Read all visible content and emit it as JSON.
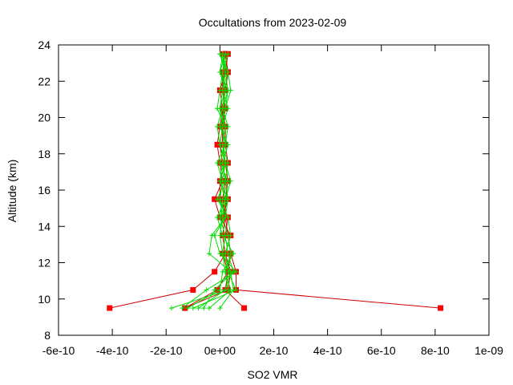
{
  "chart_data": {
    "type": "line",
    "title": "Occultations from 2023-02-09",
    "xlabel": "SO2 VMR",
    "ylabel": "Altitude (km)",
    "xlim": [
      -6e-10,
      1e-09
    ],
    "ylim": [
      8,
      24
    ],
    "x_ticks": [
      -6e-10,
      -4e-10,
      -2e-10,
      0,
      2e-10,
      4e-10,
      6e-10,
      8e-10,
      1e-09
    ],
    "x_tick_labels": [
      "-6e-10",
      "-4e-10",
      "-2e-10",
      "0e+00",
      "2e-10",
      "4e-10",
      "6e-10",
      "8e-10",
      "1e-09"
    ],
    "y_ticks": [
      8,
      10,
      12,
      14,
      16,
      18,
      20,
      22,
      24
    ],
    "y_tick_labels": [
      "8",
      "10",
      "12",
      "14",
      "16",
      "18",
      "20",
      "22",
      "24"
    ],
    "grid": false,
    "legend": "none",
    "altitudes": [
      9.5,
      10.5,
      11.5,
      12.5,
      13.5,
      14.5,
      15.5,
      16.5,
      17.5,
      18.5,
      19.5,
      20.5,
      21.5,
      22.5,
      23.5
    ],
    "series": [
      {
        "color": "#00dd00",
        "marker": "plus",
        "values": [
          -4e-11,
          4e-11,
          2e-11,
          1e-11,
          0,
          1e-11,
          0,
          1e-11,
          2e-11,
          0,
          1e-11,
          0,
          1e-11,
          2e-11,
          0
        ]
      },
      {
        "color": "#00dd00",
        "marker": "plus",
        "values": [
          -6e-11,
          -2e-11,
          5e-11,
          3e-11,
          2e-11,
          0,
          1e-11,
          3e-11,
          0,
          2e-11,
          3e-11,
          1e-11,
          2e-11,
          0,
          2e-11
        ]
      },
      {
        "color": "#00dd00",
        "marker": "plus",
        "values": [
          -8e-11,
          2e-11,
          4e-11,
          -4e-11,
          -3e-11,
          2e-11,
          3e-11,
          0,
          1e-11,
          3e-11,
          0,
          2e-11,
          4e-11,
          3e-11,
          1e-11
        ]
      },
      {
        "color": "#00dd00",
        "marker": "plus",
        "values": [
          -1e-10,
          6e-11,
          3e-11,
          2e-11,
          4e-11,
          3e-11,
          -1e-11,
          2e-11,
          3e-11,
          1e-11,
          2e-11,
          -1e-11,
          0,
          1e-11,
          3e-11
        ]
      },
      {
        "color": "#00dd00",
        "marker": "plus",
        "values": [
          -1.2e-10,
          0,
          1e-11,
          5e-11,
          1e-11,
          -1e-11,
          2e-11,
          4e-11,
          2e-11,
          0,
          -1e-11,
          1e-11,
          3e-11,
          2e-11,
          1e-11
        ]
      },
      {
        "color": "#00dd00",
        "marker": "plus",
        "values": [
          -1.4e-10,
          -5e-11,
          6e-11,
          0,
          -2e-11,
          2e-11,
          0,
          1e-11,
          -1e-11,
          2e-11,
          1e-11,
          3e-11,
          1e-11,
          3e-11,
          0
        ]
      },
      {
        "color": "#00dd00",
        "marker": "plus",
        "values": [
          -1.8e-10,
          3e-11,
          2e-11,
          4e-11,
          3e-11,
          1e-11,
          2e-11,
          0,
          2e-11,
          1e-11,
          2e-11,
          0,
          2e-11,
          1e-11,
          2e-11
        ]
      },
      {
        "color": "#00dd00",
        "marker": "plus",
        "values": [
          0,
          5e-11,
          4e-11,
          1e-11,
          2e-11,
          0,
          3e-11,
          2e-11,
          1e-11,
          3e-11,
          0,
          2e-11,
          3e-11,
          0,
          1e-11
        ]
      },
      {
        "color": "#cc0000",
        "marker": "square",
        "values": [
          -4.1e-10,
          -1e-10,
          -2e-11,
          2e-11,
          4e-11,
          0,
          -2e-11,
          1e-11,
          0,
          -1e-11,
          0,
          1e-11,
          2e-11,
          3e-11,
          2e-11
        ]
      },
      {
        "color": "#cc0000",
        "marker": "square",
        "values": [
          8.2e-10,
          6e-11,
          6e-11,
          4e-11,
          3e-11,
          2e-11,
          2e-11,
          3e-11,
          2e-11,
          1e-11,
          1e-11,
          2e-11,
          1e-11,
          2e-11,
          3e-11
        ]
      },
      {
        "color": "#cc0000",
        "marker": "square",
        "values": [
          -1.3e-10,
          -1e-11,
          3e-11,
          4e-11,
          3e-11,
          1e-11,
          3e-11,
          2e-11,
          3e-11,
          2e-11,
          2e-11,
          1e-11,
          2e-11,
          3e-11,
          2e-11
        ]
      },
      {
        "color": "#cc0000",
        "marker": "square",
        "values": [
          9e-11,
          2e-11,
          3e-11,
          1e-11,
          2e-11,
          3e-11,
          0,
          0,
          2e-11,
          1e-11,
          1e-11,
          1e-11,
          0,
          2e-11,
          1e-11
        ]
      },
      {
        "color": "#cc0000",
        "marker": "square",
        "values": [
          -1.3e-10,
          3e-11,
          4e-11,
          2e-11,
          1e-11,
          2e-11,
          1e-11,
          2e-11,
          1e-11,
          0,
          1e-11,
          2e-11,
          1e-11,
          1e-11,
          2e-11
        ]
      }
    ]
  }
}
